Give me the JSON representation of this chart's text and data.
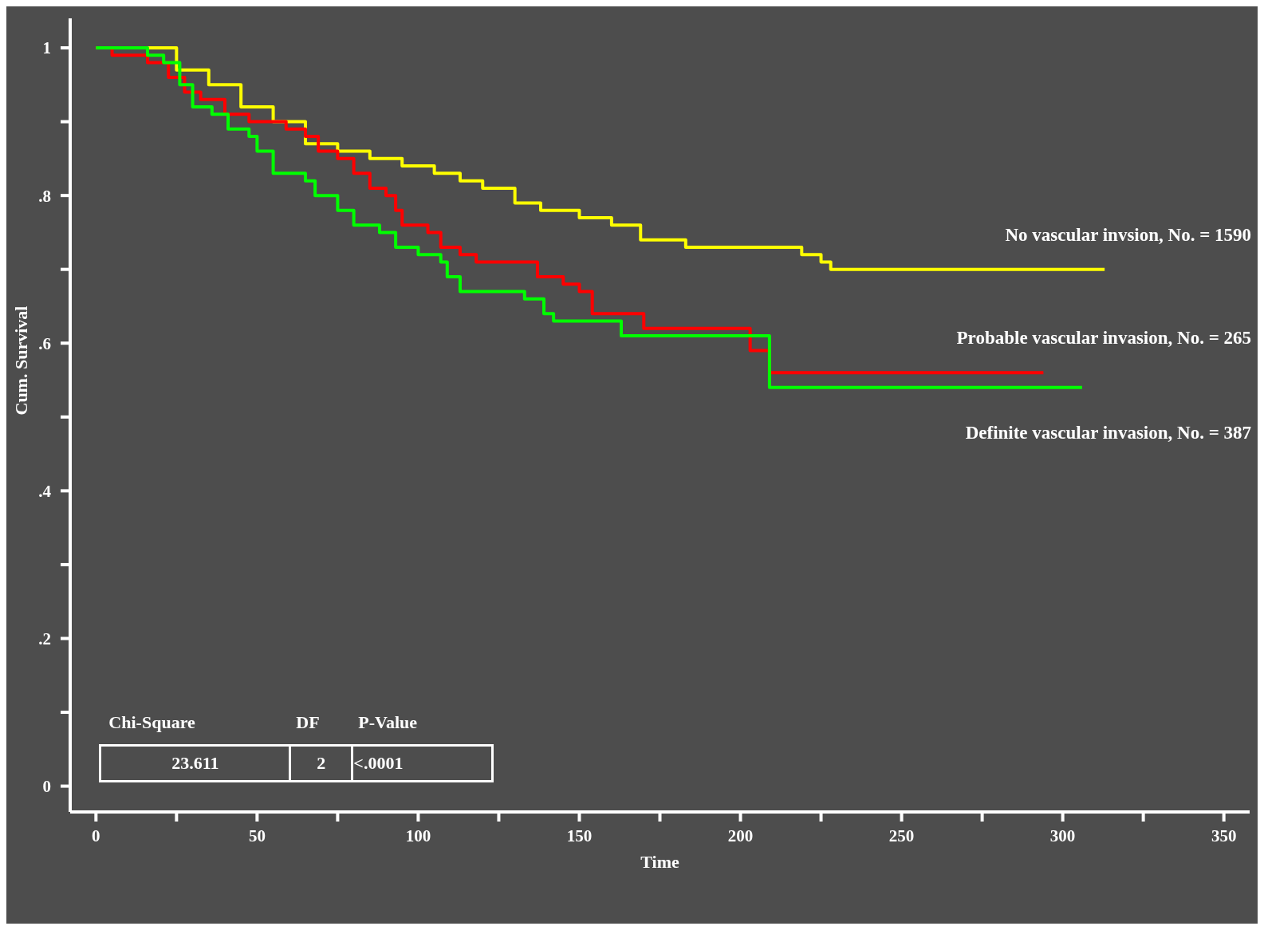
{
  "chart_data": {
    "type": "step",
    "xlabel": "Time",
    "ylabel": "Cum. Survival",
    "xlim": [
      -8,
      358
    ],
    "ylim": [
      -0.035,
      1.04
    ],
    "xticks": [
      0,
      {
        "value": 25,
        "label": null
      },
      50,
      {
        "value": 75,
        "label": null
      },
      100,
      {
        "value": 125,
        "label": null
      },
      150,
      {
        "value": 175,
        "label": null
      },
      200,
      {
        "value": 225,
        "label": null
      },
      250,
      {
        "value": 275,
        "label": null
      },
      300,
      {
        "value": 325,
        "label": null
      },
      350
    ],
    "yticks": [
      0,
      {
        "value": 0.1,
        "label": null
      },
      {
        "value": 0.2,
        "label": ".2"
      },
      {
        "value": 0.3,
        "label": null
      },
      {
        "value": 0.4,
        "label": ".4"
      },
      {
        "value": 0.5,
        "label": null
      },
      {
        "value": 0.6,
        "label": ".6"
      },
      {
        "value": 0.7,
        "label": null
      },
      {
        "value": 0.8,
        "label": ".8"
      },
      {
        "value": 0.9,
        "label": null
      },
      1
    ],
    "grid": false,
    "legend": false,
    "marker": "none",
    "line_style": "solid",
    "series": [
      {
        "name": "No vascular invsion, No. = 1590",
        "color": "#ffff00",
        "x": [
          0,
          8,
          25,
          35,
          45,
          55,
          65,
          75,
          85,
          95,
          105,
          113,
          120,
          130,
          138,
          150,
          160,
          169,
          178,
          183,
          200,
          219,
          225,
          228,
          313
        ],
        "values": [
          1,
          1,
          0.97,
          0.95,
          0.92,
          0.9,
          0.87,
          0.86,
          0.85,
          0.84,
          0.83,
          0.82,
          0.81,
          0.79,
          0.78,
          0.77,
          0.76,
          0.74,
          0.74,
          0.73,
          0.73,
          0.72,
          0.71,
          0.7,
          0.7
        ]
      },
      {
        "name": "Probable vascular invasion, No. = 265",
        "color": "#ff0000",
        "x": [
          0,
          5,
          7.5,
          16,
          22.5,
          27.5,
          32.5,
          40,
          47.5,
          55,
          59,
          65,
          69,
          75,
          80,
          85,
          90,
          93,
          95,
          103,
          107,
          113,
          118,
          137,
          145,
          150,
          154,
          170,
          203,
          209,
          294
        ],
        "values": [
          1,
          0.99,
          0.99,
          0.98,
          0.96,
          0.94,
          0.93,
          0.91,
          0.9,
          0.9,
          0.89,
          0.88,
          0.86,
          0.85,
          0.83,
          0.81,
          0.8,
          0.78,
          0.76,
          0.75,
          0.73,
          0.72,
          0.71,
          0.69,
          0.68,
          0.67,
          0.64,
          0.62,
          0.59,
          0.56,
          0.56
        ]
      },
      {
        "name": "Definite vascular invasion, No. = 387",
        "color": "#00ff00",
        "x": [
          0,
          9,
          16,
          21,
          26,
          30,
          36,
          41,
          47.5,
          50,
          55,
          65,
          68,
          75,
          80,
          88,
          93,
          100,
          107,
          109,
          113,
          133,
          139,
          142,
          163,
          209,
          306
        ],
        "values": [
          1,
          1,
          0.99,
          0.98,
          0.95,
          0.92,
          0.91,
          0.89,
          0.88,
          0.86,
          0.83,
          0.82,
          0.8,
          0.78,
          0.76,
          0.75,
          0.73,
          0.72,
          0.71,
          0.69,
          0.67,
          0.66,
          0.64,
          0.63,
          0.61,
          0.54,
          0.54
        ]
      }
    ],
    "annotations": [
      "Chi-Square",
      "DF",
      "P-Value",
      "23.611",
      "2",
      "<.0001"
    ]
  }
}
